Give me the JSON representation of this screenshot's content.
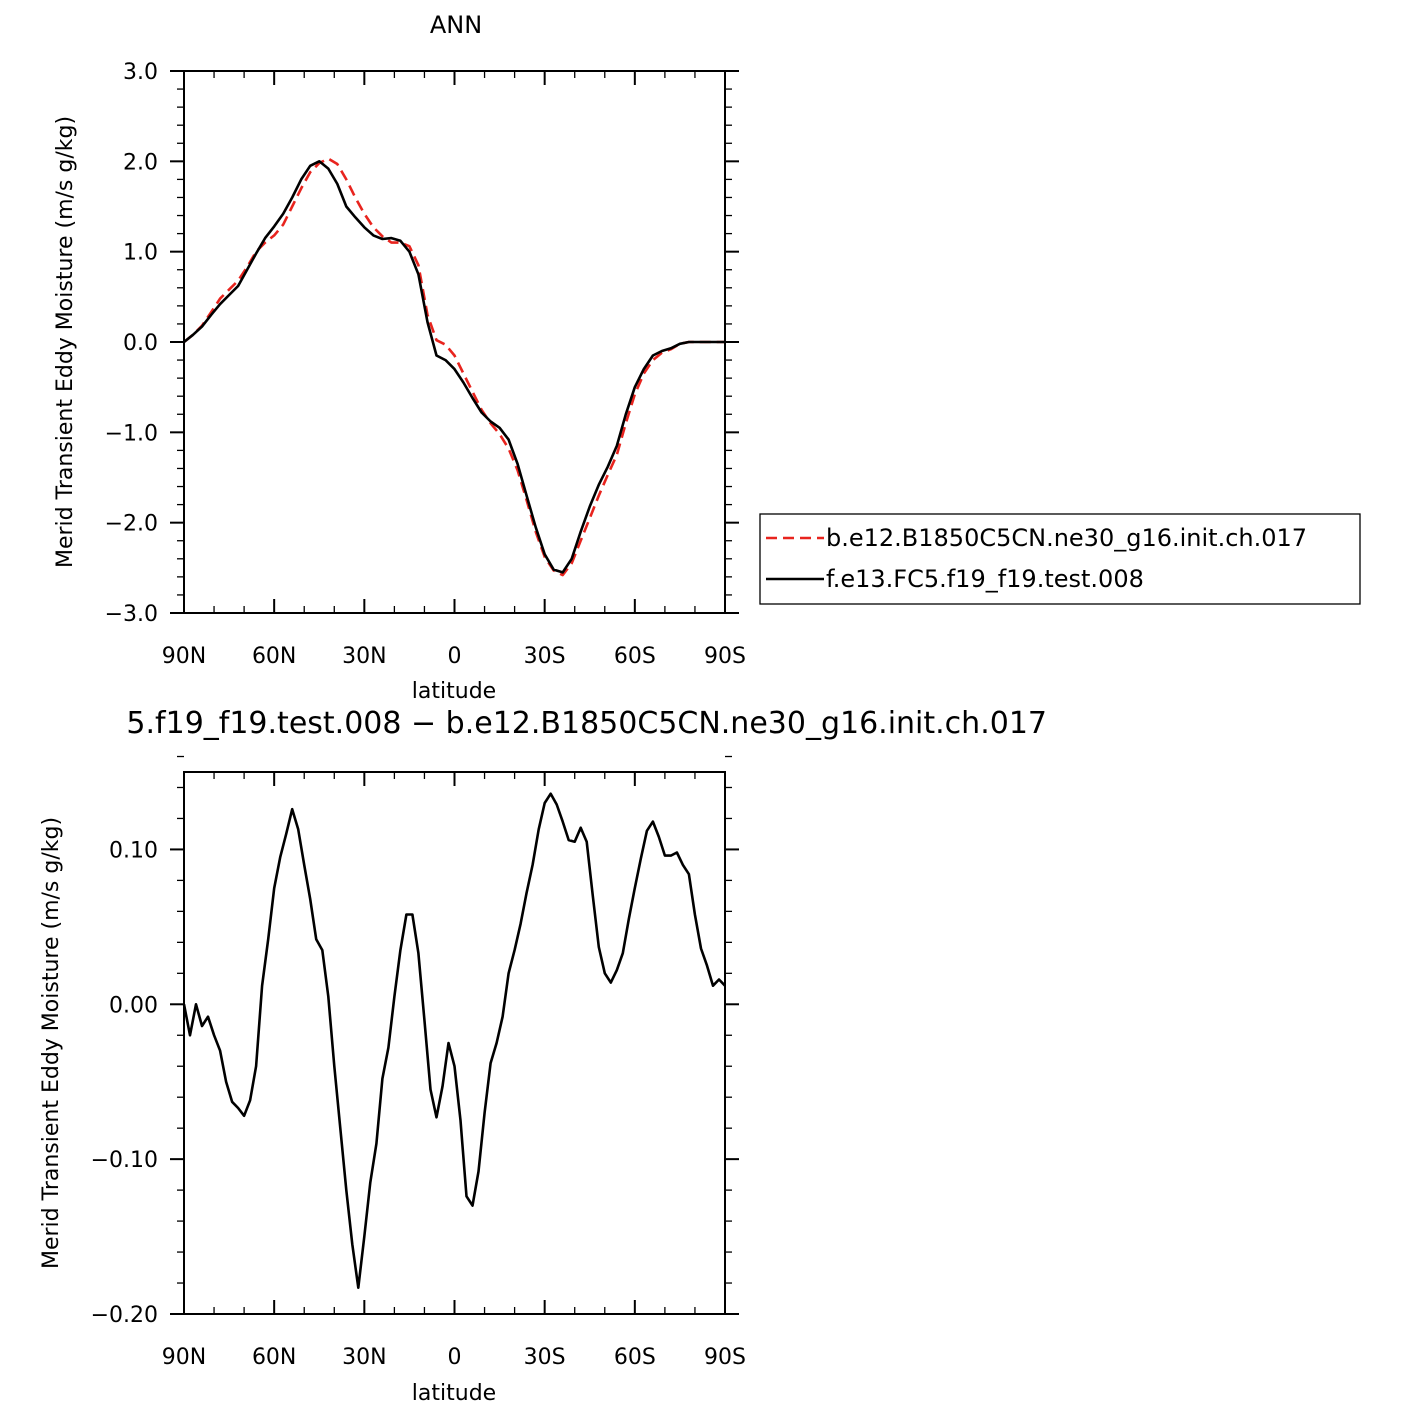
{
  "colors": {
    "control": "#e8241e",
    "test": "#000000"
  },
  "chart_data": [
    {
      "type": "line",
      "title": "ANN",
      "xlabel": "latitude",
      "ylabel": "Merid Transient Eddy Moisture (m/s g/kg)",
      "xlim": [
        -90,
        90
      ],
      "ylim": [
        -3.0,
        3.0
      ],
      "x_ticks": [
        {
          "value": -90,
          "label": "90N"
        },
        {
          "value": -60,
          "label": "60N"
        },
        {
          "value": -30,
          "label": "30N"
        },
        {
          "value": 0,
          "label": "0"
        },
        {
          "value": 30,
          "label": "30S"
        },
        {
          "value": 60,
          "label": "60S"
        },
        {
          "value": 90,
          "label": "90S"
        }
      ],
      "y_ticks": [
        {
          "value": 3.0,
          "label": "3.0"
        },
        {
          "value": 2.0,
          "label": "2.0"
        },
        {
          "value": 1.0,
          "label": "1.0"
        },
        {
          "value": 0.0,
          "label": "0.0"
        },
        {
          "value": -1.0,
          "label": "−1.0"
        },
        {
          "value": -2.0,
          "label": "−2.0"
        },
        {
          "value": -3.0,
          "label": "−3.0"
        }
      ],
      "legend_position": "right",
      "series": [
        {
          "name": "b.e12.B1850C5CN.ne30_g16.init.ch.017",
          "style": "dashed",
          "color": "#e8241e",
          "x": [
            -90,
            -87,
            -84,
            -81,
            -78,
            -75,
            -72,
            -69,
            -66,
            -63,
            -60,
            -57,
            -54,
            -51,
            -48,
            -45,
            -42,
            -39,
            -36,
            -33,
            -30,
            -27,
            -24,
            -21,
            -18,
            -15,
            -12,
            -9,
            -6,
            -3,
            0,
            3,
            6,
            9,
            12,
            15,
            18,
            21,
            24,
            27,
            30,
            33,
            36,
            39,
            42,
            45,
            48,
            51,
            54,
            57,
            60,
            63,
            66,
            69,
            72,
            75,
            78,
            81,
            84,
            87,
            90
          ],
          "y": [
            0.0,
            0.08,
            0.18,
            0.33,
            0.48,
            0.58,
            0.68,
            0.83,
            1.0,
            1.1,
            1.18,
            1.3,
            1.5,
            1.7,
            1.88,
            1.98,
            2.03,
            1.97,
            1.8,
            1.6,
            1.42,
            1.27,
            1.17,
            1.1,
            1.1,
            1.06,
            0.85,
            0.3,
            0.02,
            -0.03,
            -0.15,
            -0.35,
            -0.55,
            -0.75,
            -0.9,
            -1.02,
            -1.18,
            -1.42,
            -1.75,
            -2.1,
            -2.38,
            -2.53,
            -2.58,
            -2.45,
            -2.2,
            -1.95,
            -1.7,
            -1.47,
            -1.25,
            -0.9,
            -0.58,
            -0.35,
            -0.2,
            -0.12,
            -0.08,
            -0.02,
            0.0,
            0.0,
            0.0,
            0.0,
            0.0
          ]
        },
        {
          "name": "f.e13.FC5.f19_f19.test.008",
          "style": "solid",
          "color": "#000000",
          "x": [
            -90,
            -87,
            -84,
            -81,
            -78,
            -75,
            -72,
            -69,
            -66,
            -63,
            -60,
            -57,
            -54,
            -51,
            -48,
            -45,
            -42,
            -39,
            -36,
            -33,
            -30,
            -27,
            -24,
            -21,
            -18,
            -15,
            -12,
            -9,
            -6,
            -3,
            0,
            3,
            6,
            9,
            12,
            15,
            18,
            21,
            24,
            27,
            30,
            33,
            36,
            39,
            42,
            45,
            48,
            51,
            54,
            57,
            60,
            63,
            66,
            69,
            72,
            75,
            78,
            81,
            84,
            87,
            90
          ],
          "y": [
            0.0,
            0.08,
            0.17,
            0.3,
            0.42,
            0.52,
            0.62,
            0.8,
            0.98,
            1.15,
            1.28,
            1.42,
            1.6,
            1.8,
            1.95,
            2.0,
            1.92,
            1.75,
            1.5,
            1.38,
            1.27,
            1.18,
            1.14,
            1.15,
            1.12,
            1.0,
            0.75,
            0.22,
            -0.15,
            -0.2,
            -0.3,
            -0.45,
            -0.62,
            -0.78,
            -0.88,
            -0.95,
            -1.08,
            -1.35,
            -1.7,
            -2.05,
            -2.35,
            -2.52,
            -2.55,
            -2.4,
            -2.1,
            -1.82,
            -1.58,
            -1.38,
            -1.15,
            -0.8,
            -0.5,
            -0.3,
            -0.15,
            -0.1,
            -0.07,
            -0.02,
            0.0,
            0.0,
            0.0,
            0.0,
            0.0
          ]
        }
      ]
    },
    {
      "type": "line",
      "title": "5.f19_f19.test.008 − b.e12.B1850C5CN.ne30_g16.init.ch.017",
      "xlabel": "latitude",
      "ylabel": "Merid Transient Eddy Moisture (m/s g/kg)",
      "xlim": [
        -90,
        90
      ],
      "ylim": [
        -0.2,
        0.15
      ],
      "x_ticks": [
        {
          "value": -90,
          "label": "90N"
        },
        {
          "value": -60,
          "label": "60N"
        },
        {
          "value": -30,
          "label": "30N"
        },
        {
          "value": 0,
          "label": "0"
        },
        {
          "value": 30,
          "label": "30S"
        },
        {
          "value": 60,
          "label": "60S"
        },
        {
          "value": 90,
          "label": "90S"
        }
      ],
      "y_ticks": [
        {
          "value": 0.1,
          "label": "0.10"
        },
        {
          "value": 0.0,
          "label": "0.00"
        },
        {
          "value": -0.1,
          "label": "−0.10"
        },
        {
          "value": -0.2,
          "label": "−0.20"
        }
      ],
      "series": [
        {
          "style": "solid",
          "color": "#000000",
          "x": [
            -90,
            -88,
            -86,
            -84,
            -82,
            -80,
            -78,
            -76,
            -74,
            -72,
            -70,
            -68,
            -66,
            -64,
            -62,
            -60,
            -58,
            -56,
            -54,
            -52,
            -50,
            -48,
            -46,
            -44,
            -42,
            -40,
            -38,
            -36,
            -34,
            -32,
            -30,
            -28,
            -26,
            -24,
            -22,
            -20,
            -18,
            -16,
            -14,
            -12,
            -10,
            -8,
            -6,
            -4,
            -2,
            0,
            2,
            4,
            6,
            8,
            10,
            12,
            14,
            16,
            18,
            20,
            22,
            24,
            26,
            28,
            30,
            32,
            34,
            36,
            38,
            40,
            42,
            44,
            46,
            48,
            50,
            52,
            54,
            56,
            58,
            60,
            62,
            64,
            66,
            68,
            70,
            72,
            74,
            76,
            78,
            80,
            82,
            84,
            86,
            88,
            90
          ],
          "y": [
            0.0,
            -0.02,
            0.0,
            -0.014,
            -0.008,
            -0.02,
            -0.03,
            -0.05,
            -0.063,
            -0.067,
            -0.072,
            -0.062,
            -0.04,
            0.012,
            0.042,
            0.075,
            0.095,
            0.11,
            0.126,
            0.113,
            0.09,
            0.068,
            0.042,
            0.035,
            0.005,
            -0.04,
            -0.08,
            -0.12,
            -0.155,
            -0.183,
            -0.15,
            -0.115,
            -0.09,
            -0.048,
            -0.028,
            0.005,
            0.035,
            0.058,
            0.058,
            0.033,
            -0.01,
            -0.055,
            -0.073,
            -0.053,
            -0.025,
            -0.04,
            -0.075,
            -0.124,
            -0.13,
            -0.108,
            -0.07,
            -0.038,
            -0.025,
            -0.008,
            0.02,
            0.035,
            0.052,
            0.072,
            0.09,
            0.113,
            0.13,
            0.136,
            0.129,
            0.118,
            0.106,
            0.105,
            0.114,
            0.105,
            0.07,
            0.037,
            0.02,
            0.014,
            0.022,
            0.033,
            0.055,
            0.075,
            0.094,
            0.112,
            0.118,
            0.108,
            0.096,
            0.096,
            0.098,
            0.09,
            0.084,
            0.058,
            0.036,
            0.025,
            0.012,
            0.016,
            0.012
          ]
        }
      ]
    }
  ],
  "legend": {
    "entries": [
      {
        "label": "b.e12.B1850C5CN.ne30_g16.init.ch.017",
        "style": "dashed"
      },
      {
        "label": "f.e13.FC5.f19_f19.test.008",
        "style": "solid"
      }
    ]
  }
}
